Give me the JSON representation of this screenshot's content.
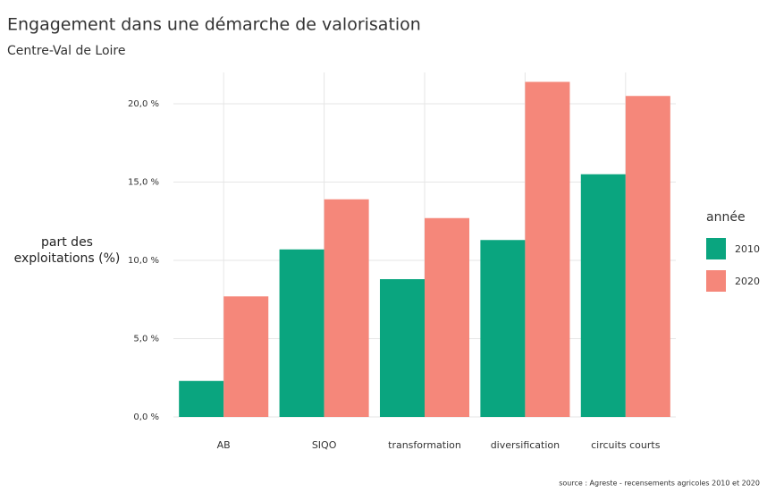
{
  "chart_data": {
    "type": "bar",
    "title": "Engagement dans une démarche de valorisation",
    "subtitle": "Centre-Val de Loire",
    "y_label": "part des exploitations (%)",
    "legend_title": "année",
    "source": "source : Agreste - recensements agricoles 2010 et 2020",
    "categories": [
      "AB",
      "SIQO",
      "transformation",
      "diversification",
      "circuits courts"
    ],
    "series": [
      {
        "name": "2010",
        "color": "#0aa57f",
        "values": [
          2.3,
          10.7,
          8.8,
          11.3,
          15.5
        ]
      },
      {
        "name": "2020",
        "color": "#f5877a",
        "values": [
          7.7,
          13.9,
          12.7,
          21.4,
          20.5
        ]
      }
    ],
    "ylim": [
      0,
      22
    ],
    "yticks": [
      {
        "value": 0,
        "label": "0,0 %"
      },
      {
        "value": 5,
        "label": "5,0 %"
      },
      {
        "value": 10,
        "label": "10,0 %"
      },
      {
        "value": 15,
        "label": "15,0 %"
      },
      {
        "value": 20,
        "label": "20,0 %"
      }
    ],
    "grid": true
  }
}
